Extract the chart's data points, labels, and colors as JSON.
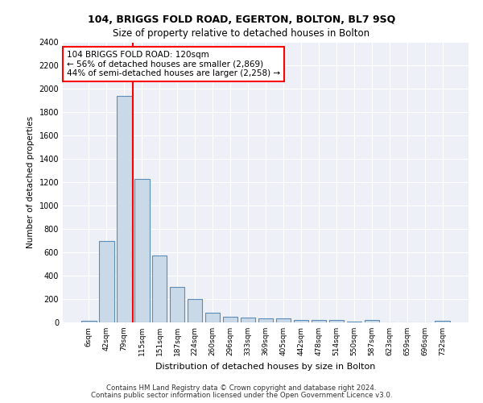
{
  "title1": "104, BRIGGS FOLD ROAD, EGERTON, BOLTON, BL7 9SQ",
  "title2": "Size of property relative to detached houses in Bolton",
  "xlabel": "Distribution of detached houses by size in Bolton",
  "ylabel": "Number of detached properties",
  "bar_labels": [
    "6sqm",
    "42sqm",
    "79sqm",
    "115sqm",
    "151sqm",
    "187sqm",
    "224sqm",
    "260sqm",
    "296sqm",
    "333sqm",
    "369sqm",
    "405sqm",
    "442sqm",
    "478sqm",
    "514sqm",
    "550sqm",
    "587sqm",
    "623sqm",
    "659sqm",
    "696sqm",
    "732sqm"
  ],
  "bar_values": [
    15,
    700,
    1940,
    1230,
    570,
    305,
    200,
    80,
    45,
    40,
    35,
    35,
    20,
    20,
    20,
    5,
    20,
    0,
    0,
    0,
    15
  ],
  "bar_color": "#c9d9e8",
  "bar_edge_color": "#5c8db8",
  "vline_pos": 2.5,
  "vline_color": "red",
  "annotation_text": "104 BRIGGS FOLD ROAD: 120sqm\n← 56% of detached houses are smaller (2,869)\n44% of semi-detached houses are larger (2,258) →",
  "annotation_box_color": "white",
  "annotation_box_edge": "red",
  "ylim": [
    0,
    2400
  ],
  "yticks": [
    0,
    200,
    400,
    600,
    800,
    1000,
    1200,
    1400,
    1600,
    1800,
    2000,
    2200,
    2400
  ],
  "footer1": "Contains HM Land Registry data © Crown copyright and database right 2024.",
  "footer2": "Contains public sector information licensed under the Open Government Licence v3.0.",
  "plot_bg_color": "#edf1f7"
}
